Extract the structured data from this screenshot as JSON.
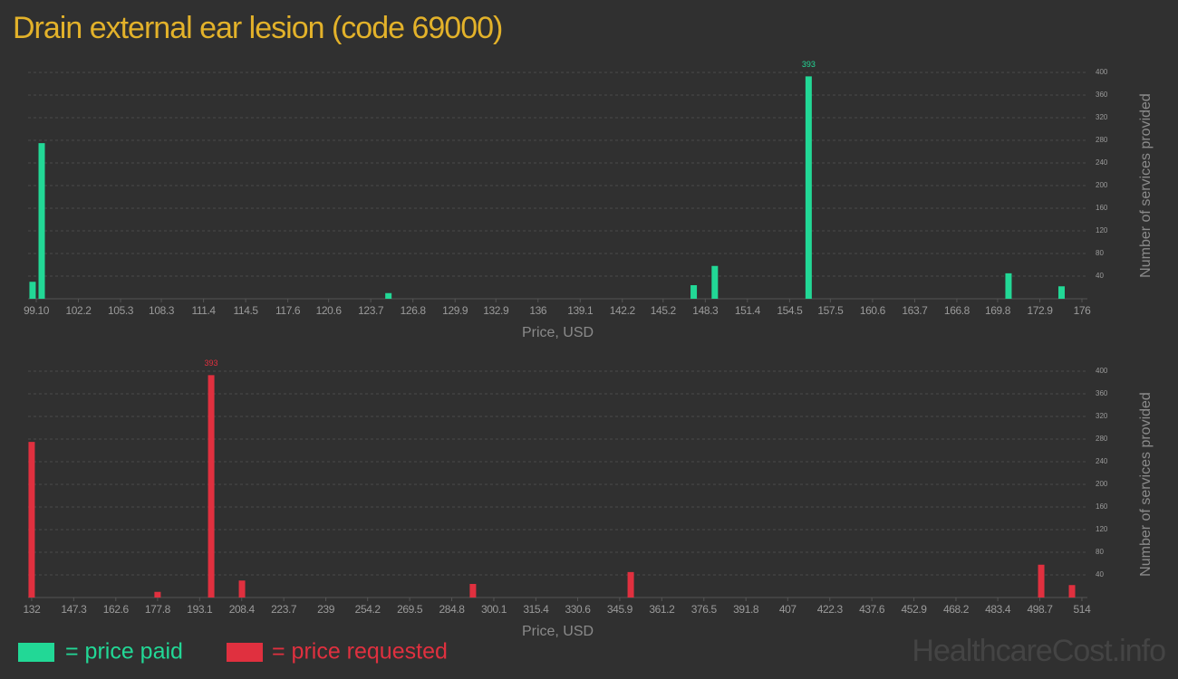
{
  "title": "Drain external ear lesion (code 69000)",
  "watermark": "HealthcareCost.info",
  "chart_data": [
    {
      "type": "bar",
      "x": [
        98.83,
        99.5,
        125.0,
        147.45,
        149.0,
        155.9,
        170.6,
        174.5
      ],
      "series": [
        {
          "name": "= price paid",
          "color": "#22d896",
          "values": [
            30,
            275,
            10,
            24,
            58,
            393,
            45,
            22
          ]
        }
      ],
      "xlim": [
        98.5,
        176.4
      ],
      "xticks": [
        {
          "value": 99.1,
          "label": "99.10"
        },
        102.2,
        105.3,
        108.3,
        111.4,
        114.5,
        117.6,
        120.6,
        123.7,
        126.8,
        129.9,
        132.9,
        136,
        139.1,
        142.2,
        145.2,
        148.3,
        151.4,
        154.5,
        157.5,
        160.6,
        163.7,
        166.8,
        169.8,
        172.9,
        176
      ],
      "ylim": [
        0,
        400
      ],
      "yticks": [
        40,
        80,
        120,
        160,
        200,
        240,
        280,
        320,
        360,
        400
      ],
      "xlabel": "Price, USD",
      "ylabel": "Number of services provided",
      "grid": true
    },
    {
      "type": "bar",
      "x": [
        132.0,
        177.8,
        197.3,
        208.5,
        292.5,
        349.9,
        499.2,
        510.4
      ],
      "series": [
        {
          "name": "= price requested",
          "color": "#e0303f",
          "values": [
            275,
            10,
            393,
            30,
            24,
            45,
            58,
            22
          ]
        }
      ],
      "xlim": [
        130.7,
        516
      ],
      "xticks": [
        132,
        147.3,
        162.6,
        177.8,
        193.1,
        208.4,
        223.7,
        239,
        254.2,
        269.5,
        284.8,
        300.1,
        315.4,
        330.6,
        345.9,
        361.2,
        376.5,
        391.8,
        407,
        422.3,
        437.6,
        452.9,
        468.2,
        483.4,
        498.7,
        514
      ],
      "ylim": [
        0,
        400
      ],
      "yticks": [
        40,
        80,
        120,
        160,
        200,
        240,
        280,
        320,
        360,
        400
      ],
      "xlabel": "Price, USD",
      "ylabel": "Number of services provided",
      "grid": true
    }
  ]
}
